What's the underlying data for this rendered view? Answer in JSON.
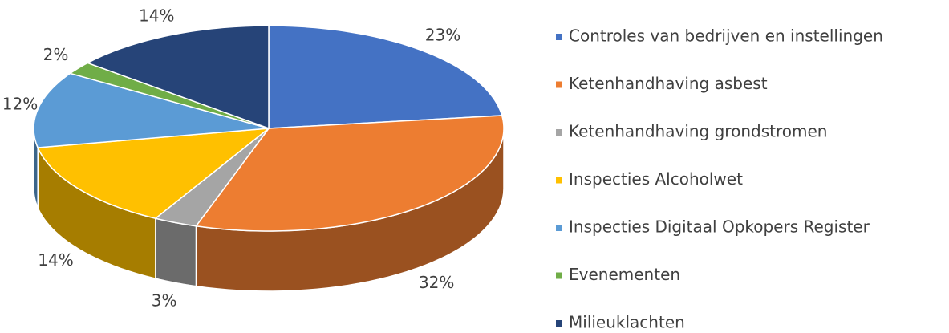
{
  "chart_data": {
    "type": "pie3d",
    "categories": [
      "Controles van bedrijven en instellingen",
      "Ketenhandhaving asbest",
      "Ketenhandhaving grondstromen",
      "Inspecties Alcoholwet",
      "Inspecties Digitaal Opkopers Register",
      "Evenementen",
      "Milieuklachten"
    ],
    "values": [
      23,
      32,
      3,
      14,
      12,
      2,
      14
    ],
    "value_labels": [
      "23%",
      "32%",
      "3%",
      "14%",
      "12%",
      "2%",
      "14%"
    ],
    "colors": [
      "#4472c4",
      "#ed7d31",
      "#a5a5a5",
      "#ffc000",
      "#5b9bd5",
      "#70ad47",
      "#264478"
    ],
    "legend": "right"
  }
}
